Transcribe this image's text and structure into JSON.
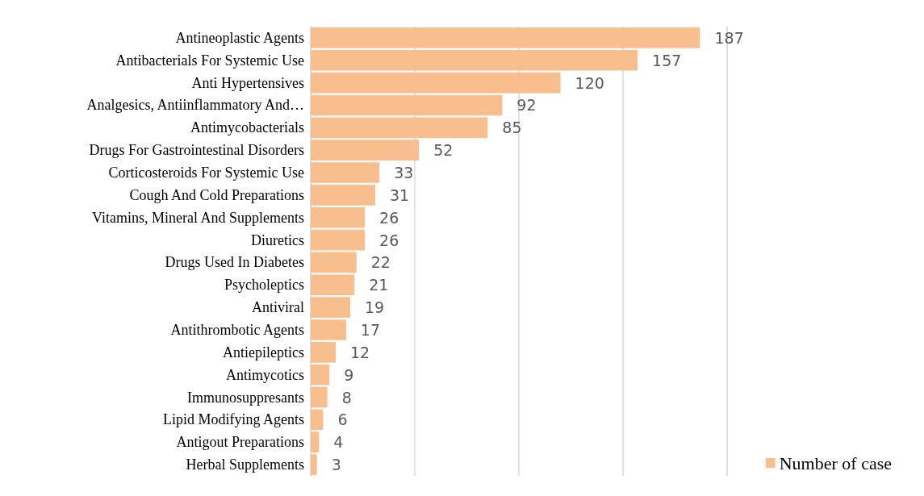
{
  "chart_data": {
    "type": "bar",
    "orientation": "horizontal",
    "categories": [
      "Antineoplastic Agents",
      "Antibacterials For Systemic Use",
      "Anti Hypertensives",
      "Analgesics, Antiinflammatory And…",
      "Antimycobacterials",
      "Drugs For Gastrointestinal Disorders",
      "Corticosteroids For Systemic Use",
      "Cough And Cold Preparations",
      "Vitamins, Mineral And Supplements",
      "Diuretics",
      "Drugs Used In Diabetes",
      "Psycholeptics",
      "Antiviral",
      "Antithrombotic Agents",
      "Antiepileptics",
      "Antimycotics",
      "Immunosuppresants",
      "Lipid Modifying Agents",
      "Antigout Preparations",
      "Herbal Supplements"
    ],
    "series": [
      {
        "name": "Number of case",
        "color": "#f9be8e",
        "values": [
          187,
          157,
          120,
          92,
          85,
          52,
          33,
          31,
          26,
          26,
          22,
          21,
          19,
          17,
          12,
          9,
          8,
          6,
          4,
          3
        ]
      }
    ],
    "xlim": [
      0,
      200
    ],
    "xticks": [
      {
        "value": 0,
        "label": null
      },
      {
        "value": 50,
        "label": null
      },
      {
        "value": 100,
        "label": null
      },
      {
        "value": 150,
        "label": null
      },
      {
        "value": 200,
        "label": null
      }
    ],
    "tick_labels": "y",
    "grid": "x",
    "data_labels": true,
    "legend": "bottom right"
  }
}
